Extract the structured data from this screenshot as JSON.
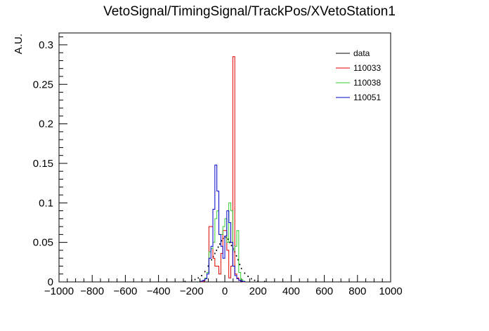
{
  "chart_data": {
    "type": "histogram",
    "title": "VetoSignal/TimingSignal/TrackPos/XVetoStation1",
    "xlabel": "",
    "ylabel": "A.U.",
    "xlim": [
      -1000,
      1000
    ],
    "ylim": [
      0,
      0.315
    ],
    "bin_width": 12,
    "x_ticks": [
      -1000,
      -800,
      -600,
      -400,
      -200,
      0,
      200,
      400,
      600,
      800,
      1000
    ],
    "x_tick_labels": [
      "−1000",
      "−800",
      "−600",
      "−400",
      "−200",
      "0",
      "200",
      "400",
      "600",
      "800",
      "1000"
    ],
    "y_ticks": [
      0,
      0.05,
      0.1,
      0.15,
      0.2,
      0.25,
      0.3
    ],
    "y_tick_labels": [
      "0",
      "0.05",
      "0.1",
      "0.15",
      "0.2",
      "0.25",
      "0.3"
    ],
    "legend_position": "top-right",
    "series": [
      {
        "name": "data",
        "style": "points",
        "color": "#000000",
        "x": [
          -240,
          -200,
          -180,
          -160,
          -140,
          -120,
          -100,
          -80,
          -70,
          -60,
          -50,
          -40,
          -30,
          -20,
          -10,
          0,
          10,
          20,
          30,
          40,
          50,
          60,
          70,
          80,
          90,
          100,
          120,
          140,
          160,
          180,
          200,
          240
        ],
        "y": [
          0.0005,
          0.002,
          0.003,
          0.005,
          0.008,
          0.013,
          0.02,
          0.028,
          0.032,
          0.036,
          0.04,
          0.044,
          0.048,
          0.052,
          0.055,
          0.057,
          0.056,
          0.054,
          0.05,
          0.046,
          0.042,
          0.038,
          0.033,
          0.028,
          0.022,
          0.017,
          0.011,
          0.007,
          0.004,
          0.002,
          0.001,
          0.0005
        ]
      },
      {
        "name": "110033",
        "style": "step",
        "color": "#e00000",
        "x": [
          -144,
          -132,
          -120,
          -108,
          -96,
          -84,
          -72,
          -60,
          -48,
          -36,
          -24,
          -12,
          0,
          12,
          24,
          36,
          48,
          60,
          72,
          84,
          96,
          108
        ],
        "y": [
          0,
          0.001,
          0.004,
          0.012,
          0.07,
          0.07,
          0.03,
          0.02,
          0.02,
          0.01,
          0.036,
          0.065,
          0.065,
          0.04,
          0.005,
          0.02,
          0.285,
          0.01,
          0.005,
          0.002,
          0.001,
          0
        ]
      },
      {
        "name": "110038",
        "style": "step",
        "color": "#33cc33",
        "x": [
          -144,
          -132,
          -120,
          -108,
          -96,
          -84,
          -72,
          -60,
          -48,
          -36,
          -24,
          -12,
          0,
          12,
          24,
          36,
          48,
          60,
          72,
          84,
          96,
          108
        ],
        "y": [
          0.001,
          0.002,
          0.005,
          0.012,
          0.038,
          0.042,
          0.05,
          0.08,
          0.09,
          0.06,
          0.06,
          0.07,
          0.08,
          0.05,
          0.1,
          0.09,
          0.04,
          0.045,
          0.065,
          0.012,
          0.003,
          0.001
        ]
      },
      {
        "name": "110051",
        "style": "step",
        "color": "#0000cc",
        "x": [
          -144,
          -132,
          -120,
          -108,
          -96,
          -84,
          -72,
          -60,
          -48,
          -36,
          -24,
          -12,
          0,
          12,
          24,
          36,
          48,
          60,
          72,
          84,
          96,
          108
        ],
        "y": [
          0.001,
          0.002,
          0.004,
          0.01,
          0.03,
          0.045,
          0.092,
          0.148,
          0.115,
          0.06,
          0.045,
          0.03,
          0.058,
          0.09,
          0.075,
          0.05,
          0.02,
          0.008,
          0.004,
          0.002,
          0.001,
          0.0005
        ]
      }
    ]
  }
}
